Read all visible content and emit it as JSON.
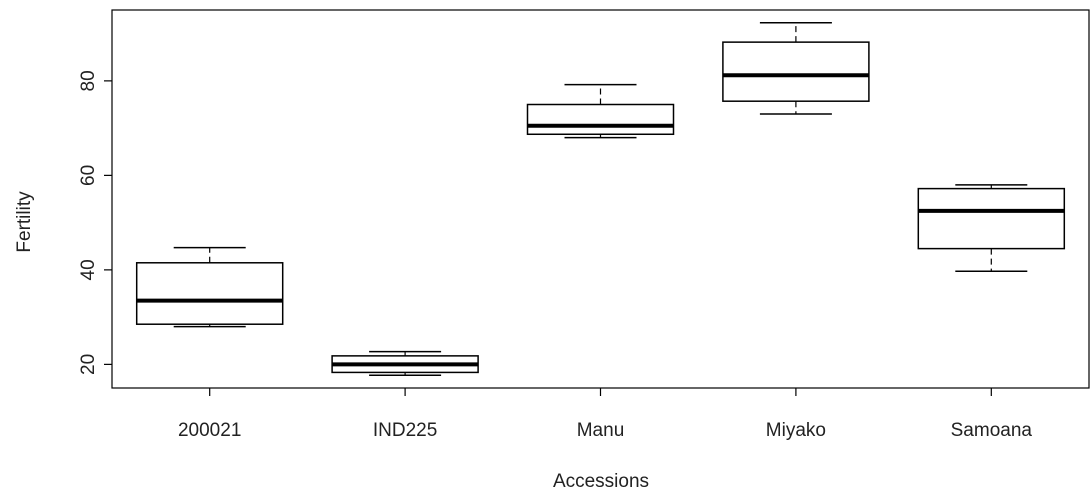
{
  "chart_data": {
    "type": "box",
    "title": "",
    "xlabel": "Accessions",
    "ylabel": "Fertility",
    "ylim": [
      15,
      95
    ],
    "yticks": [
      20,
      40,
      60,
      80
    ],
    "ytick_labels": [
      "20",
      "40",
      "60",
      "80"
    ],
    "grid": false,
    "categories": [
      "200021",
      "IND225",
      "Manu",
      "Miyako",
      "Samoana"
    ],
    "boxes": [
      {
        "category": "200021",
        "min": 28,
        "q1": 28.5,
        "median": 33.5,
        "q3": 41.5,
        "max": 44.7
      },
      {
        "category": "IND225",
        "min": 17.7,
        "q1": 18.3,
        "median": 20,
        "q3": 21.8,
        "max": 22.7
      },
      {
        "category": "Manu",
        "min": 68,
        "q1": 68.7,
        "median": 70.5,
        "q3": 75,
        "max": 79.2
      },
      {
        "category": "Miyako",
        "min": 73,
        "q1": 75.7,
        "median": 81.2,
        "q3": 88.2,
        "max": 92.3
      },
      {
        "category": "Samoana",
        "min": 39.7,
        "q1": 44.5,
        "median": 52.5,
        "q3": 57.2,
        "max": 58
      }
    ],
    "colors": {
      "stroke": "#000000",
      "text": "#222222",
      "background": "#ffffff"
    }
  }
}
